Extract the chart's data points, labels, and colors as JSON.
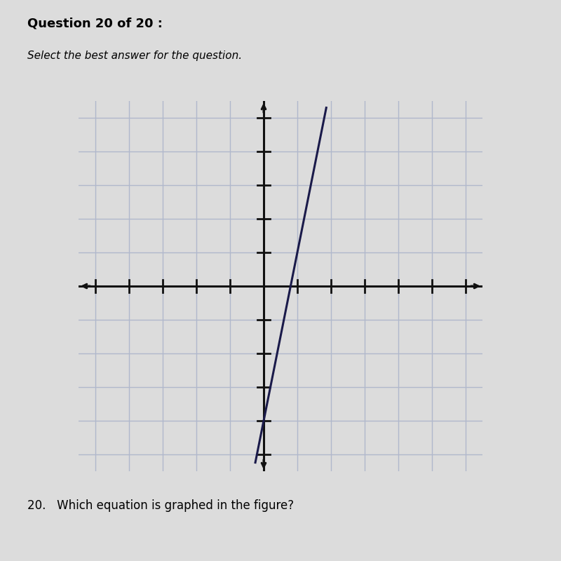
{
  "title_line1": "Question 20 of 20 :",
  "subtitle": "Select the best answer for the question.",
  "question_text": "20.   Which equation is graphed in the figure?",
  "slope": 5,
  "point_x": 1,
  "point_y": 1,
  "x_range": [
    -5,
    6
  ],
  "y_range": [
    -5,
    5
  ],
  "grid_color": "#b0b8cc",
  "axis_color": "#111111",
  "line_color": "#1a1a4a",
  "background_color": "#dcdcdc",
  "plot_bg_color": "#e0e0e0",
  "line_width": 2.2,
  "grid_linewidth": 1.0
}
